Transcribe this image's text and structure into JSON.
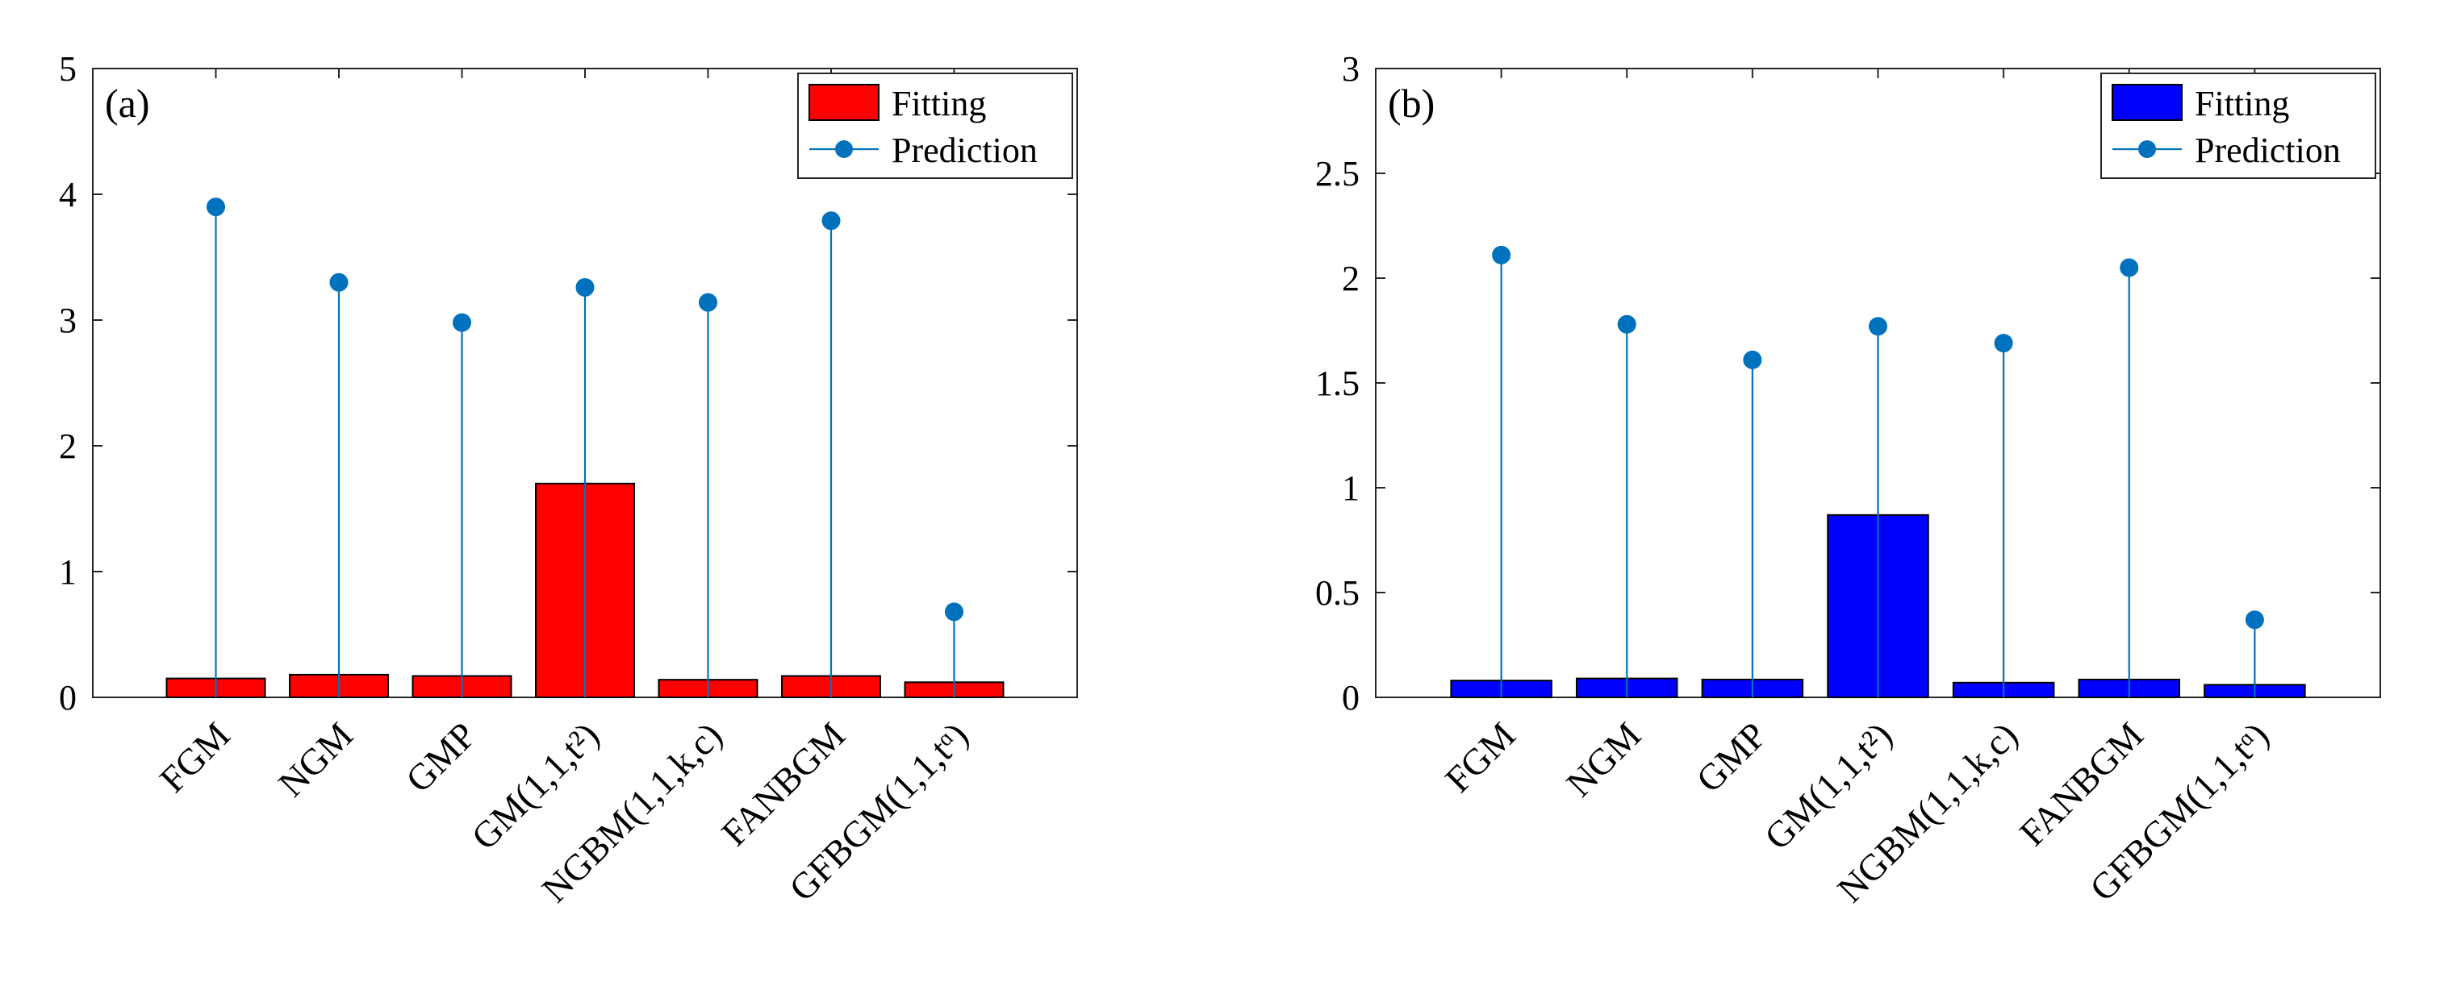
{
  "chart_data": [
    {
      "type": "bar",
      "panel_label": "(a)",
      "categories": [
        "FGM",
        "NGM",
        "GMP",
        "GM(1,1,t²)",
        "NGBM(1,1,k,c)",
        "FANBGM",
        "GFBGM(1,1,tᵅ)"
      ],
      "series": [
        {
          "name": "Fitting",
          "kind": "bar",
          "color": "#ff0000",
          "values": [
            0.15,
            0.18,
            0.17,
            1.7,
            0.14,
            0.17,
            0.12
          ]
        },
        {
          "name": "Prediction",
          "kind": "stem",
          "color": "#0072bd",
          "values": [
            3.9,
            3.3,
            2.98,
            3.26,
            3.14,
            3.79,
            0.68
          ]
        }
      ],
      "yticks": [
        "0",
        "1",
        "2",
        "3",
        "4",
        "5"
      ],
      "ylim": [
        0,
        5
      ],
      "legend_position": "top-right",
      "xlabel": "",
      "ylabel": ""
    },
    {
      "type": "bar",
      "panel_label": "(b)",
      "categories": [
        "FGM",
        "NGM",
        "GMP",
        "GM(1,1,t²)",
        "NGBM(1,1,k,c)",
        "FANBGM",
        "GFBGM(1,1,tᵅ)"
      ],
      "series": [
        {
          "name": "Fitting",
          "kind": "bar",
          "color": "#0000ff",
          "values": [
            0.08,
            0.09,
            0.085,
            0.87,
            0.07,
            0.085,
            0.06
          ]
        },
        {
          "name": "Prediction",
          "kind": "stem",
          "color": "#0072bd",
          "values": [
            2.11,
            1.78,
            1.61,
            1.77,
            1.69,
            2.05,
            0.37
          ]
        }
      ],
      "yticks": [
        "0",
        "0.5",
        "1",
        "1.5",
        "2",
        "2.5",
        "3"
      ],
      "ylim": [
        0,
        3
      ],
      "legend_position": "top-right",
      "xlabel": "",
      "ylabel": ""
    }
  ]
}
